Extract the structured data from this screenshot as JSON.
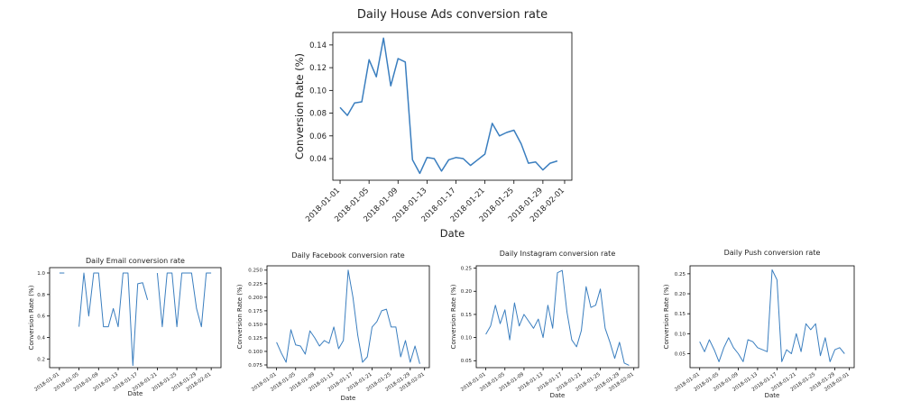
{
  "figure": {
    "line_color": "#3a7ebf",
    "background": "#ffffff",
    "axis_color": "#000000"
  },
  "chart_data": [
    {
      "type": "line",
      "title": "Daily House Ads conversion rate",
      "xlabel": "Date",
      "ylabel": "Conversion Rate (%)",
      "x_start": "2018-01-01",
      "xlim": [
        "2017-12-31",
        "2018-02-02"
      ],
      "ylim": [
        0.021,
        0.151
      ],
      "xticks": [
        "2018-01-01",
        "2018-01-05",
        "2018-01-09",
        "2018-01-13",
        "2018-01-17",
        "2018-01-21",
        "2018-01-25",
        "2018-01-29",
        "2018-02-01"
      ],
      "yticks": [
        0.04,
        0.06,
        0.08,
        0.1,
        0.12,
        0.14
      ],
      "ytick_labels": [
        "0.04",
        "0.06",
        "0.08",
        "0.10",
        "0.12",
        "0.14"
      ],
      "series": [
        {
          "values": [
            0.085,
            0.078,
            0.089,
            0.09,
            0.127,
            0.112,
            0.146,
            0.104,
            0.128,
            0.125,
            0.039,
            0.027,
            0.041,
            0.04,
            0.029,
            0.039,
            0.041,
            0.04,
            0.034,
            0.039,
            0.044,
            0.071,
            0.06,
            0.063,
            0.065,
            0.053,
            0.036,
            0.037,
            0.03,
            0.036,
            0.038
          ]
        }
      ]
    },
    {
      "type": "line",
      "title": "Daily Email conversion rate",
      "xlabel": "Date",
      "ylabel": "Conversion Rate (%)",
      "x_start": "2018-01-01",
      "xlim": [
        "2017-12-30",
        "2018-02-03"
      ],
      "ylim": [
        0.12,
        1.05
      ],
      "xticks": [
        "2018-01-01",
        "2018-01-05",
        "2018-01-09",
        "2018-01-13",
        "2018-01-17",
        "2018-01-21",
        "2018-01-25",
        "2018-01-29",
        "2018-02-01"
      ],
      "yticks": [
        0.2,
        0.4,
        0.6,
        0.8,
        1.0
      ],
      "ytick_labels": [
        "0.2",
        "0.4",
        "0.6",
        "0.8",
        "1.0"
      ],
      "series": [
        {
          "values": [
            1.0,
            1.0,
            null,
            null,
            0.5,
            1.0,
            0.6,
            1.0,
            1.0,
            0.5,
            0.5,
            0.67,
            0.5,
            1.0,
            1.0,
            0.14,
            0.9,
            0.91,
            0.75,
            null,
            1.0,
            0.5,
            1.0,
            1.0,
            0.5,
            1.0,
            1.0,
            1.0,
            0.67,
            0.5,
            1.0,
            1.0
          ]
        }
      ]
    },
    {
      "type": "line",
      "title": "Daily Facebook conversion rate",
      "xlabel": "Date",
      "ylabel": "Conversion Rate (%)",
      "x_start": "2018-01-01",
      "xlim": [
        "2017-12-30",
        "2018-02-02"
      ],
      "ylim": [
        0.07,
        0.258
      ],
      "xticks": [
        "2018-01-01",
        "2018-01-05",
        "2018-01-09",
        "2018-01-13",
        "2018-01-17",
        "2018-01-21",
        "2018-01-25",
        "2018-01-29",
        "2018-02-01"
      ],
      "yticks": [
        0.075,
        0.1,
        0.125,
        0.15,
        0.175,
        0.2,
        0.225,
        0.25
      ],
      "ytick_labels": [
        "0.075",
        "0.100",
        "0.125",
        "0.150",
        "0.175",
        "0.200",
        "0.225",
        "0.250"
      ],
      "series": [
        {
          "values": [
            0.117,
            0.097,
            0.08,
            0.14,
            0.112,
            0.11,
            0.095,
            0.138,
            0.125,
            0.11,
            0.12,
            0.115,
            0.145,
            0.105,
            0.12,
            0.25,
            0.2,
            0.13,
            0.08,
            0.09,
            0.145,
            0.155,
            0.175,
            0.178,
            0.145,
            0.145,
            0.09,
            0.12,
            0.08,
            0.11,
            0.077
          ]
        }
      ]
    },
    {
      "type": "line",
      "title": "Daily Instagram conversion rate",
      "xlabel": "Date",
      "ylabel": "Conversion Rate (%)",
      "x_start": "2018-01-01",
      "xlim": [
        "2017-12-30",
        "2018-02-02"
      ],
      "ylim": [
        0.035,
        0.255
      ],
      "xticks": [
        "2018-01-01",
        "2018-01-05",
        "2018-01-09",
        "2018-01-13",
        "2018-01-17",
        "2018-01-21",
        "2018-01-25",
        "2018-01-29",
        "2018-02-01"
      ],
      "yticks": [
        0.05,
        0.1,
        0.15,
        0.2,
        0.25
      ],
      "ytick_labels": [
        "0.05",
        "0.10",
        "0.15",
        "0.20",
        "0.25"
      ],
      "series": [
        {
          "values": [
            0.107,
            0.125,
            0.17,
            0.13,
            0.16,
            0.095,
            0.175,
            0.125,
            0.15,
            0.135,
            0.12,
            0.14,
            0.1,
            0.17,
            0.12,
            0.24,
            0.245,
            0.155,
            0.095,
            0.08,
            0.115,
            0.21,
            0.165,
            0.17,
            0.205,
            0.12,
            0.09,
            0.055,
            0.09,
            0.045,
            0.04
          ]
        }
      ]
    },
    {
      "type": "line",
      "title": "Daily Push conversion rate",
      "xlabel": "Date",
      "ylabel": "Conversion Rate (%)",
      "x_start": "2018-01-01",
      "xlim": [
        "2017-12-30",
        "2018-02-02"
      ],
      "ylim": [
        0.015,
        0.27
      ],
      "xticks": [
        "2018-01-01",
        "2018-01-05",
        "2018-01-09",
        "2018-01-13",
        "2018-01-17",
        "2018-01-21",
        "2018-01-25",
        "2018-01-29",
        "2018-02-01"
      ],
      "yticks": [
        0.05,
        0.1,
        0.15,
        0.2,
        0.25
      ],
      "ytick_labels": [
        "0.05",
        "0.10",
        "0.15",
        "0.20",
        "0.25"
      ],
      "series": [
        {
          "values": [
            0.08,
            0.055,
            0.085,
            0.06,
            0.03,
            0.065,
            0.09,
            0.065,
            0.05,
            0.03,
            0.085,
            0.08,
            0.065,
            0.06,
            0.055,
            0.26,
            0.235,
            0.03,
            0.06,
            0.05,
            0.1,
            0.055,
            0.125,
            0.11,
            0.125,
            0.045,
            0.09,
            0.03,
            0.06,
            0.065,
            0.05
          ]
        }
      ]
    }
  ]
}
